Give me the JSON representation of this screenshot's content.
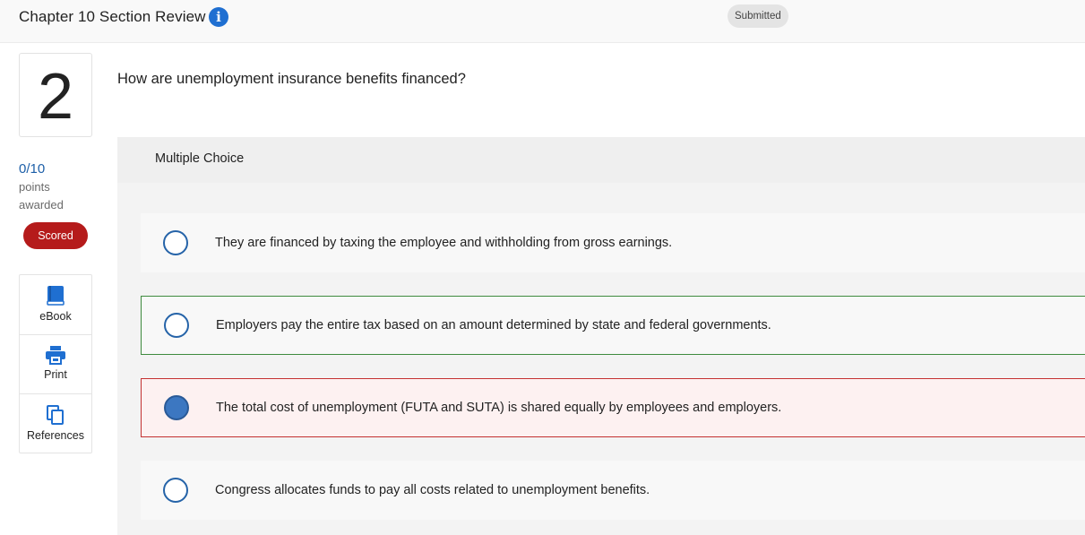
{
  "header": {
    "title": "Chapter 10 Section Review",
    "info_glyph": "i",
    "status": "Submitted"
  },
  "question": {
    "number": "2",
    "text": "How are unemployment insurance benefits financed?",
    "type_label": "Multiple Choice"
  },
  "score": {
    "value": "0/10",
    "label_line1": "points",
    "label_line2": "awarded",
    "badge": "Scored"
  },
  "tools": [
    {
      "label": "eBook",
      "icon": "book-icon"
    },
    {
      "label": "Print",
      "icon": "printer-icon"
    },
    {
      "label": "References",
      "icon": "documents-icon"
    }
  ],
  "options": [
    {
      "text": "They are financed by taxing the employee and withholding from gross earnings.",
      "selected": false,
      "state": "neutral"
    },
    {
      "text": "Employers pay the entire tax based on an amount determined by state and federal governments.",
      "selected": false,
      "state": "correct"
    },
    {
      "text": "The total cost of unemployment (FUTA and SUTA) is shared equally by employees and employers.",
      "selected": true,
      "state": "incorrect"
    },
    {
      "text": "Congress allocates funds to pay all costs related to unemployment benefits.",
      "selected": false,
      "state": "neutral"
    }
  ],
  "colors": {
    "accent": "#1f6fd1",
    "scored": "#b51b1b",
    "correct_border": "#3e8a3e",
    "incorrect_border": "#c43131"
  }
}
